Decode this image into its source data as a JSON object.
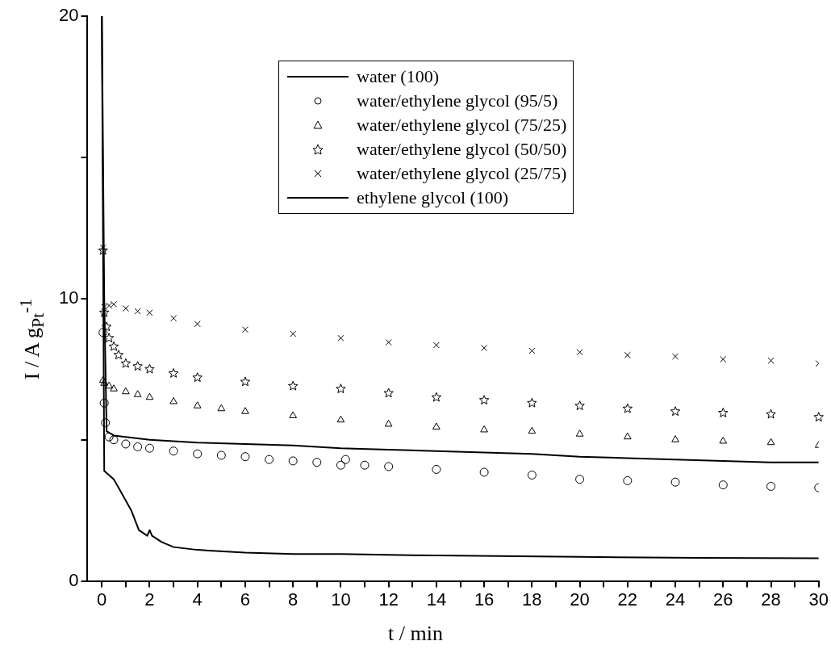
{
  "chart_data": {
    "type": "line",
    "xlabel": "t / min",
    "ylabel": "I / A g$_{Pt}$$^{-1}$",
    "xlim": [
      -0.6,
      30
    ],
    "ylim": [
      0,
      20
    ],
    "xticks": [
      0,
      {
        "value": 1,
        "label": null
      },
      2,
      {
        "value": 3,
        "label": null
      },
      4,
      {
        "value": 5,
        "label": null
      },
      6,
      {
        "value": 7,
        "label": null
      },
      8,
      {
        "value": 9,
        "label": null
      },
      10,
      {
        "value": 11,
        "label": null
      },
      12,
      {
        "value": 13,
        "label": null
      },
      14,
      {
        "value": 15,
        "label": null
      },
      16,
      {
        "value": 17,
        "label": null
      },
      18,
      {
        "value": 19,
        "label": null
      },
      20,
      {
        "value": 21,
        "label": null
      },
      22,
      {
        "value": 23,
        "label": null
      },
      24,
      {
        "value": 25,
        "label": null
      },
      26,
      {
        "value": 27,
        "label": null
      },
      28,
      {
        "value": 29,
        "label": null
      },
      30
    ],
    "yticks": [
      0,
      {
        "value": 5,
        "label": null
      },
      10,
      {
        "value": 15,
        "label": null
      },
      20
    ],
    "grid": false,
    "legend": "top",
    "line_style": "solid",
    "series": [
      {
        "name": "water (100)",
        "marker": "none",
        "color": "#000000",
        "x": [
          0,
          0.1,
          0.5,
          0.77,
          1.23,
          1.55,
          1.9,
          2.0,
          2.1,
          2.5,
          3,
          4,
          6,
          8,
          10,
          14,
          20,
          25,
          30
        ],
        "values": [
          20,
          3.9,
          3.6,
          3.2,
          2.5,
          1.8,
          1.6,
          1.8,
          1.6,
          1.38,
          1.2,
          1.1,
          1.0,
          0.95,
          0.95,
          0.9,
          0.85,
          0.82,
          0.8
        ]
      },
      {
        "name": "water/ethylene glycol (95/5)",
        "type": "scatter",
        "marker": "circle",
        "color": "#000000",
        "x": [
          0.05,
          0.1,
          0.15,
          0.3,
          0.5,
          1,
          1.5,
          2,
          3,
          4,
          5,
          6,
          7,
          8,
          9,
          10,
          10.2,
          11,
          12,
          14,
          16,
          18,
          20,
          22,
          24,
          26,
          28,
          30
        ],
        "values": [
          8.8,
          6.3,
          5.6,
          5.1,
          5.0,
          4.85,
          4.75,
          4.7,
          4.6,
          4.5,
          4.45,
          4.4,
          4.3,
          4.25,
          4.2,
          4.1,
          4.3,
          4.1,
          4.05,
          3.95,
          3.85,
          3.75,
          3.6,
          3.55,
          3.5,
          3.4,
          3.35,
          3.3
        ]
      },
      {
        "name": "water/ethylene glycol (75/25)",
        "type": "scatter",
        "marker": "triangle",
        "color": "#000000",
        "x": [
          0.05,
          0.1,
          0.3,
          0.5,
          1,
          1.5,
          2,
          3,
          4,
          5,
          6,
          8,
          10,
          12,
          14,
          16,
          18,
          20,
          22,
          24,
          26,
          28,
          30
        ],
        "values": [
          7.1,
          7.0,
          6.9,
          6.8,
          6.7,
          6.6,
          6.5,
          6.35,
          6.2,
          6.1,
          6.0,
          5.85,
          5.7,
          5.55,
          5.45,
          5.35,
          5.3,
          5.2,
          5.1,
          5.0,
          4.95,
          4.9,
          4.8
        ]
      },
      {
        "name": "water/ethylene glycol (50/50)",
        "type": "scatter",
        "marker": "star",
        "color": "#000000",
        "x": [
          0.05,
          0.1,
          0.2,
          0.3,
          0.5,
          0.7,
          1,
          1.5,
          2,
          3,
          4,
          6,
          8,
          10,
          12,
          14,
          16,
          18,
          20,
          22,
          24,
          26,
          28,
          30
        ],
        "values": [
          11.7,
          9.5,
          9.0,
          8.6,
          8.3,
          8.0,
          7.7,
          7.6,
          7.5,
          7.35,
          7.2,
          7.05,
          6.9,
          6.8,
          6.65,
          6.5,
          6.4,
          6.3,
          6.2,
          6.1,
          6.0,
          5.95,
          5.9,
          5.8
        ]
      },
      {
        "name": "water/ethylene glycol (25/75)",
        "type": "scatter",
        "marker": "cross",
        "color": "#000000",
        "x": [
          0.05,
          0.1,
          0.3,
          0.5,
          1,
          1.5,
          2,
          3,
          4,
          6,
          8,
          10,
          12,
          14,
          16,
          18,
          20,
          22,
          24,
          26,
          28,
          30
        ],
        "values": [
          11.8,
          9.7,
          9.75,
          9.8,
          9.65,
          9.55,
          9.5,
          9.3,
          9.1,
          8.9,
          8.75,
          8.6,
          8.45,
          8.35,
          8.25,
          8.15,
          8.1,
          8.0,
          7.95,
          7.85,
          7.8,
          7.7
        ]
      },
      {
        "name": "ethylene glycol (100)",
        "marker": "none",
        "color": "#000000",
        "x": [
          0,
          0.1,
          0.2,
          0.5,
          1,
          2,
          4,
          6,
          8,
          10,
          12,
          14,
          16,
          18,
          20,
          22,
          24,
          26,
          28,
          30
        ],
        "values": [
          20,
          10,
          5.3,
          5.15,
          5.1,
          5.0,
          4.9,
          4.85,
          4.8,
          4.7,
          4.65,
          4.6,
          4.55,
          4.5,
          4.4,
          4.35,
          4.3,
          4.25,
          4.2,
          4.2
        ]
      }
    ]
  }
}
